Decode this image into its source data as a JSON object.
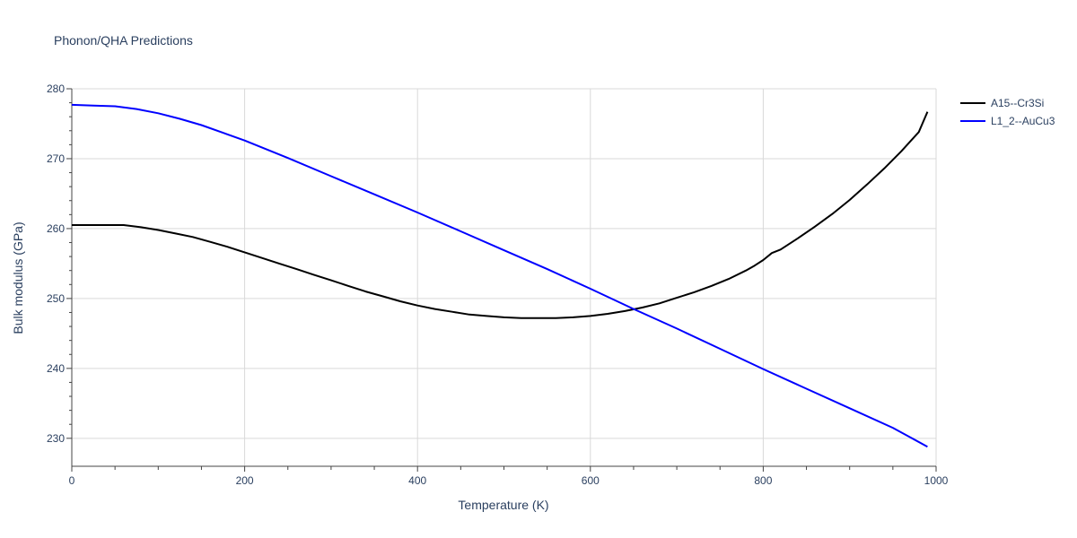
{
  "chart_data": {
    "type": "line",
    "title": "Phonon/QHA Predictions",
    "xlabel": "Temperature (K)",
    "ylabel": "Bulk modulus (GPa)",
    "xlim": [
      0,
      1000
    ],
    "ylim": [
      226,
      280
    ],
    "xticks": [
      0,
      200,
      400,
      600,
      800,
      1000
    ],
    "yticks": [
      230,
      240,
      250,
      260,
      270,
      280
    ],
    "grid": true,
    "legend_position": "top-right",
    "series": [
      {
        "name": "A15--Cr3Si",
        "color": "#000000",
        "x": [
          0,
          20,
          40,
          60,
          80,
          100,
          120,
          140,
          160,
          180,
          200,
          220,
          240,
          260,
          280,
          300,
          320,
          340,
          360,
          380,
          400,
          420,
          440,
          460,
          480,
          500,
          520,
          540,
          560,
          580,
          600,
          620,
          640,
          660,
          680,
          700,
          720,
          740,
          760,
          780,
          790,
          800,
          810,
          820,
          840,
          860,
          880,
          900,
          920,
          940,
          960,
          980,
          990
        ],
        "y": [
          260.5,
          260.5,
          260.5,
          260.5,
          260.2,
          259.8,
          259.3,
          258.8,
          258.1,
          257.4,
          256.6,
          255.8,
          255.0,
          254.2,
          253.4,
          252.6,
          251.8,
          251.0,
          250.3,
          249.6,
          249.0,
          248.5,
          248.1,
          247.7,
          247.5,
          247.3,
          247.2,
          247.2,
          247.2,
          247.3,
          247.5,
          247.8,
          248.2,
          248.7,
          249.3,
          250.1,
          250.9,
          251.8,
          252.8,
          254.0,
          254.7,
          255.5,
          256.5,
          257.0,
          258.6,
          260.3,
          262.1,
          264.1,
          266.3,
          268.6,
          271.1,
          273.8,
          276.7
        ]
      },
      {
        "name": "L1_2--AuCu3",
        "color": "#0000ff",
        "x": [
          0,
          25,
          50,
          75,
          100,
          125,
          150,
          175,
          200,
          250,
          300,
          350,
          400,
          450,
          500,
          550,
          600,
          650,
          700,
          750,
          800,
          850,
          900,
          950,
          990
        ],
        "y": [
          277.7,
          277.6,
          277.5,
          277.1,
          276.5,
          275.7,
          274.8,
          273.7,
          272.6,
          270.1,
          267.5,
          264.9,
          262.3,
          259.6,
          256.9,
          254.2,
          251.4,
          248.5,
          245.7,
          242.8,
          239.9,
          237.1,
          234.3,
          231.5,
          228.8
        ]
      }
    ]
  }
}
